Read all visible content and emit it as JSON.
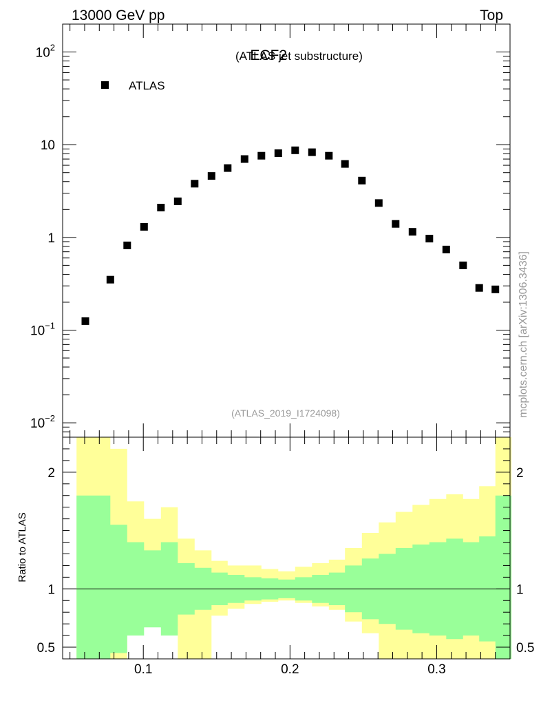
{
  "header": {
    "left": "13000 GeV pp",
    "right": "Top"
  },
  "side_label": "mcplots.cern.ch [arXiv:1306.3436]",
  "chart_data": {
    "type": "scatter",
    "title": "ECF2",
    "subtitle": "(ATLAS jet substructure)",
    "analysis_id": "(ATLAS_2019_I1724098)",
    "legend": [
      {
        "name": "ATLAS",
        "marker": "square",
        "color": "#000000"
      }
    ],
    "x": [
      0.0605,
      0.0775,
      0.089,
      0.1005,
      0.112,
      0.1235,
      0.135,
      0.1465,
      0.1575,
      0.169,
      0.1805,
      0.192,
      0.2035,
      0.215,
      0.2265,
      0.2375,
      0.249,
      0.2605,
      0.272,
      0.2835,
      0.295,
      0.3065,
      0.318,
      0.329,
      0.34
    ],
    "y": [
      0.125,
      0.35,
      0.82,
      1.3,
      2.1,
      2.45,
      3.8,
      4.6,
      5.6,
      7.0,
      7.6,
      8.1,
      8.7,
      8.3,
      7.6,
      6.2,
      4.1,
      2.35,
      1.4,
      1.15,
      0.97,
      0.74,
      0.5,
      0.285,
      0.275
    ],
    "xlim": [
      0.045,
      0.35
    ],
    "ylim": [
      0.007,
      200
    ],
    "yscale": "log",
    "yticks": [
      {
        "value": 0.01,
        "base": "10",
        "exp": "−2"
      },
      {
        "value": 0.1,
        "base": "10",
        "exp": "−1"
      },
      {
        "value": 1,
        "base": "1",
        "exp": ""
      },
      {
        "value": 10,
        "base": "10",
        "exp": ""
      },
      {
        "value": 100,
        "base": "10",
        "exp": "2"
      }
    ],
    "xticks": [
      {
        "value": 0.1,
        "label": "0.1"
      },
      {
        "value": 0.2,
        "label": "0.2"
      },
      {
        "value": 0.3,
        "label": "0.3"
      }
    ],
    "ratio": {
      "ylabel": "Ratio to ATLAS",
      "ylim": [
        0.4,
        2.3
      ],
      "ticks": [
        {
          "value": 0.5,
          "label": "0.5"
        },
        {
          "value": 1,
          "label": "1"
        },
        {
          "value": 2,
          "label": "2"
        }
      ],
      "bin_edges": [
        0.0545,
        0.0665,
        0.0775,
        0.089,
        0.1005,
        0.112,
        0.1235,
        0.135,
        0.1465,
        0.1575,
        0.169,
        0.1805,
        0.192,
        0.2035,
        0.215,
        0.2265,
        0.2375,
        0.249,
        0.2605,
        0.272,
        0.2835,
        0.295,
        0.3065,
        0.318,
        0.329,
        0.34,
        0.351
      ],
      "green_up": [
        1.8,
        1.8,
        1.55,
        1.4,
        1.33,
        1.4,
        1.22,
        1.18,
        1.14,
        1.12,
        1.1,
        1.09,
        1.08,
        1.1,
        1.12,
        1.14,
        1.2,
        1.26,
        1.3,
        1.35,
        1.38,
        1.4,
        1.43,
        1.4,
        1.45,
        1.8
      ],
      "green_dn": [
        0.2,
        0.2,
        0.45,
        0.6,
        0.67,
        0.6,
        0.78,
        0.82,
        0.86,
        0.88,
        0.9,
        0.91,
        0.92,
        0.9,
        0.88,
        0.86,
        0.8,
        0.74,
        0.7,
        0.65,
        0.62,
        0.6,
        0.57,
        0.6,
        0.55,
        0.2
      ],
      "yellow_up": [
        2.6,
        2.6,
        2.2,
        1.75,
        1.6,
        1.7,
        1.43,
        1.33,
        1.24,
        1.2,
        1.2,
        1.17,
        1.15,
        1.19,
        1.22,
        1.25,
        1.35,
        1.48,
        1.57,
        1.66,
        1.72,
        1.77,
        1.81,
        1.77,
        1.88,
        2.38
      ],
      "yellow_dn": [
        0.2,
        0.2,
        0.2,
        0.68,
        0.78,
        0.68,
        0.2,
        0.2,
        0.77,
        0.83,
        0.87,
        0.89,
        0.9,
        0.88,
        0.85,
        0.82,
        0.72,
        0.62,
        0.2,
        0.2,
        0.2,
        0.2,
        0.2,
        0.2,
        0.2,
        0.2
      ]
    }
  }
}
